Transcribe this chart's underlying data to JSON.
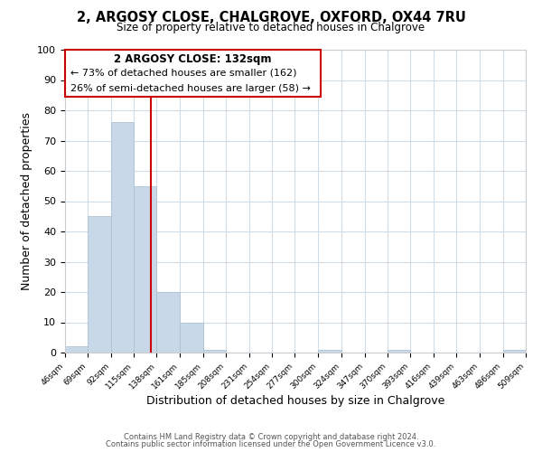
{
  "title": "2, ARGOSY CLOSE, CHALGROVE, OXFORD, OX44 7RU",
  "subtitle": "Size of property relative to detached houses in Chalgrove",
  "xlabel": "Distribution of detached houses by size in Chalgrove",
  "ylabel": "Number of detached properties",
  "footer_line1": "Contains HM Land Registry data © Crown copyright and database right 2024.",
  "footer_line2": "Contains public sector information licensed under the Open Government Licence v3.0.",
  "bar_edges": [
    46,
    69,
    92,
    115,
    138,
    161,
    185,
    208,
    231,
    254,
    277,
    300,
    324,
    347,
    370,
    393,
    416,
    439,
    463,
    486,
    509
  ],
  "bar_heights": [
    2,
    45,
    76,
    55,
    20,
    10,
    1,
    0,
    0,
    0,
    0,
    1,
    0,
    0,
    1,
    0,
    0,
    0,
    0,
    1
  ],
  "bar_color": "#c8d8e8",
  "bar_edge_color": "#a8bece",
  "property_line_x": 132,
  "property_line_color": "#cc0000",
  "ylim": [
    0,
    100
  ],
  "xlim": [
    46,
    509
  ],
  "annotation_title": "2 ARGOSY CLOSE: 132sqm",
  "annotation_line1": "← 73% of detached houses are smaller (162)",
  "annotation_line2": "26% of semi-detached houses are larger (58) →",
  "tick_labels": [
    "46sqm",
    "69sqm",
    "92sqm",
    "115sqm",
    "138sqm",
    "161sqm",
    "185sqm",
    "208sqm",
    "231sqm",
    "254sqm",
    "277sqm",
    "300sqm",
    "324sqm",
    "347sqm",
    "370sqm",
    "393sqm",
    "416sqm",
    "439sqm",
    "463sqm",
    "486sqm",
    "509sqm"
  ],
  "ytick_labels": [
    "0",
    "10",
    "20",
    "30",
    "40",
    "50",
    "60",
    "70",
    "80",
    "90",
    "100"
  ],
  "ytick_values": [
    0,
    10,
    20,
    30,
    40,
    50,
    60,
    70,
    80,
    90,
    100
  ],
  "background_color": "#ffffff",
  "grid_color": "#d0dce8"
}
